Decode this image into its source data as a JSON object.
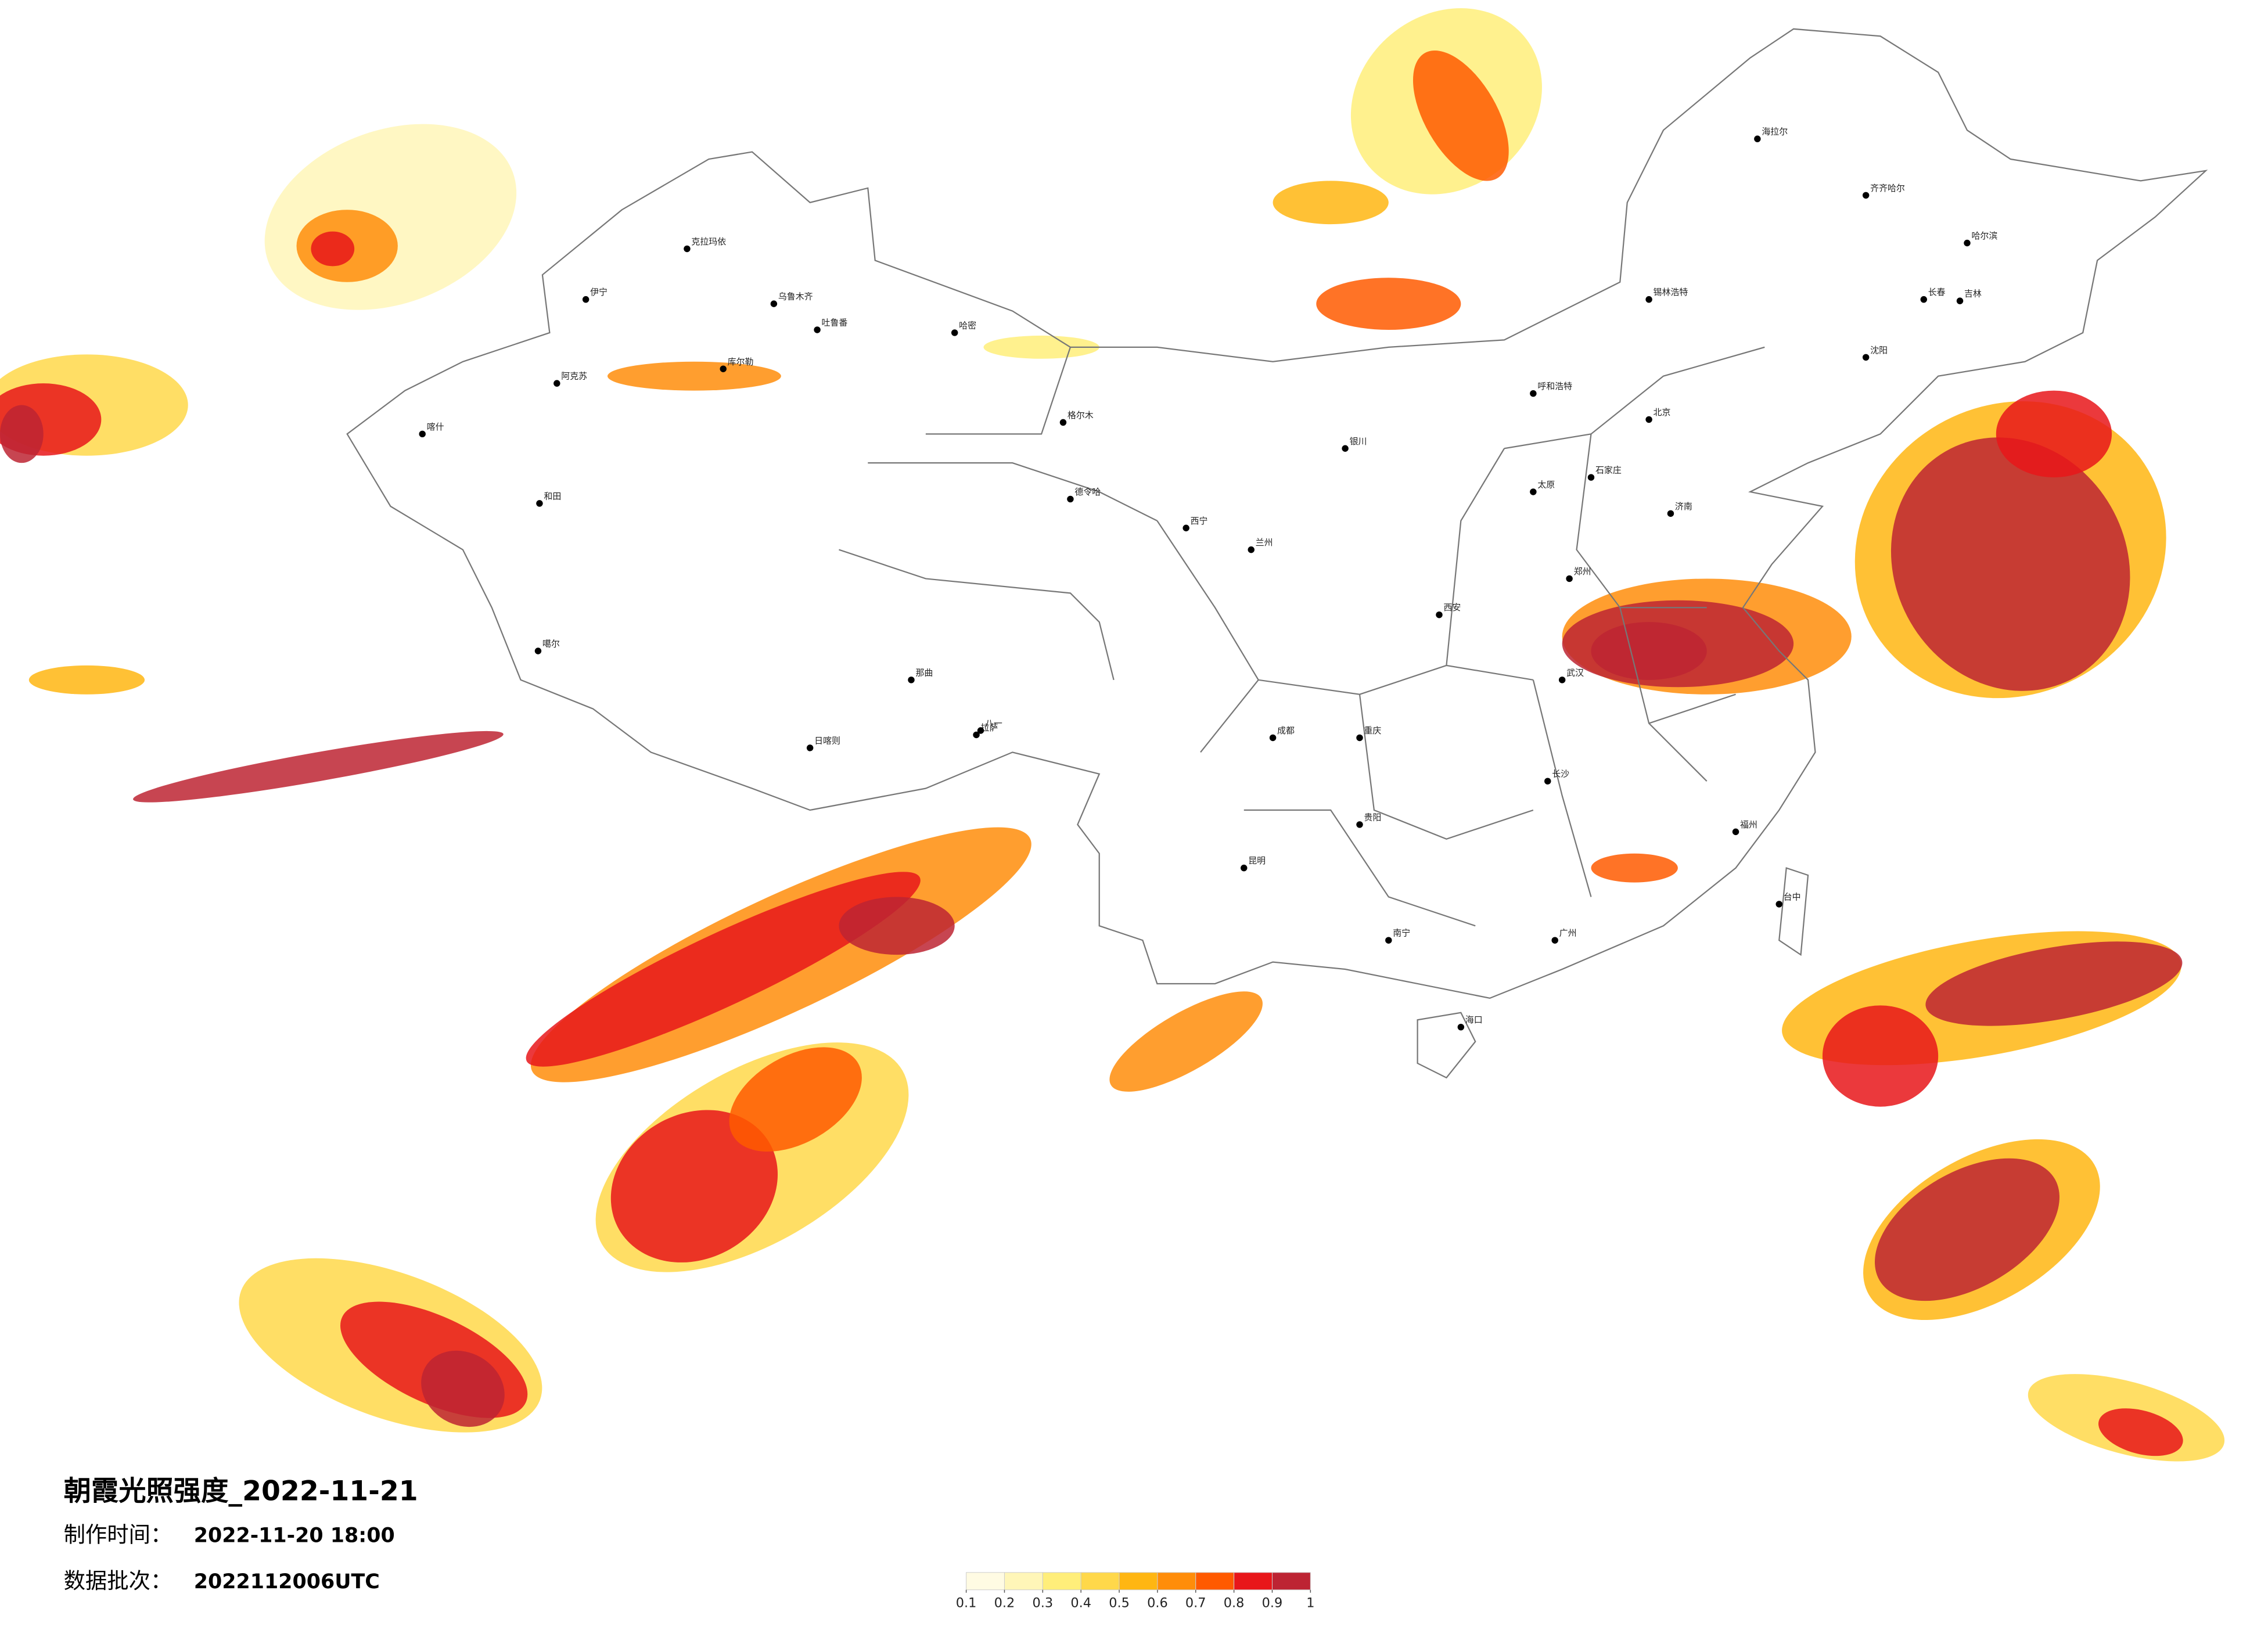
{
  "title": "朝霞光照强度_2022-11-21",
  "made_label": "制作时间：",
  "made_time": "2022-11-20 18:00",
  "batch_label": "数据批次：",
  "batch": "2022112006UTC",
  "legend": {
    "ticks": [
      0.1,
      0.2,
      0.3,
      0.4,
      0.5,
      0.6,
      0.7,
      0.8,
      0.9,
      1
    ],
    "colors": [
      "#fffbe3",
      "#fff6b8",
      "#ffee7a",
      "#ffd84a",
      "#ffb612",
      "#ff8d0a",
      "#ff5a00",
      "#e8161a",
      "#bd2433"
    ]
  },
  "cities": [
    "克拉玛依",
    "伊宁",
    "乌鲁木齐",
    "吐鲁番",
    "哈密",
    "阿克苏",
    "库尔勒",
    "喀什",
    "和田",
    "噶尔",
    "格尔木",
    "德令哈",
    "日喀则",
    "拉萨",
    "八一",
    "那曲",
    "海拉尔",
    "齐齐哈尔",
    "哈尔滨",
    "长春",
    "吉林",
    "沈阳",
    "锡林浩特",
    "呼和浩特",
    "北京",
    "石家庄",
    "济南",
    "郑州",
    "太原",
    "银川",
    "兰州",
    "西宁",
    "西安",
    "武汉",
    "成都",
    "重庆",
    "贵阳",
    "昆明",
    "长沙",
    "南宁",
    "广州",
    "福州",
    "台中",
    "海口"
  ]
}
